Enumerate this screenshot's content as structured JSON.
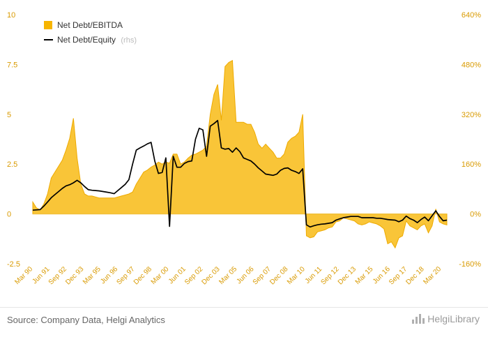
{
  "chart_data": {
    "type": "area",
    "x_labels": [
      "Mar 90",
      "Jun 91",
      "Sep 92",
      "Dec 93",
      "Mar 95",
      "Jun 96",
      "Sep 97",
      "Dec 98",
      "Mar 00",
      "Jun 01",
      "Sep 02",
      "Dec 03",
      "Mar 05",
      "Jun 06",
      "Sep 07",
      "Dec 08",
      "Mar 10",
      "Jun 11",
      "Sep 12",
      "Dec 13",
      "Mar 15",
      "Jun 16",
      "Sep 17",
      "Dec 18",
      "Mar 20"
    ],
    "y_left": {
      "ticks": [
        "10",
        "7.5",
        "5",
        "2.5",
        "0",
        "-2.5"
      ],
      "range": [
        -2.5,
        10
      ]
    },
    "y_right": {
      "ticks": [
        "640%",
        "480%",
        "320%",
        "160%",
        "0%",
        "-160%"
      ],
      "range": [
        -160,
        640
      ]
    },
    "series": [
      {
        "name": "Net Debt/EBITDA",
        "axis": "left",
        "style": "area",
        "color": "#f7b500",
        "points": [
          [
            0,
            0.6
          ],
          [
            1,
            0.3
          ],
          [
            2,
            0.2
          ],
          [
            3,
            0.5
          ],
          [
            4,
            1.0
          ],
          [
            5,
            1.8
          ],
          [
            6,
            2.1
          ],
          [
            7,
            2.4
          ],
          [
            8,
            2.7
          ],
          [
            9,
            3.2
          ],
          [
            10,
            3.8
          ],
          [
            11,
            4.8
          ],
          [
            12,
            2.8
          ],
          [
            13,
            1.5
          ],
          [
            14,
            1.0
          ],
          [
            15,
            0.9
          ],
          [
            16,
            0.9
          ],
          [
            17,
            0.85
          ],
          [
            18,
            0.8
          ],
          [
            19,
            0.8
          ],
          [
            20,
            0.8
          ],
          [
            21,
            0.8
          ],
          [
            22,
            0.8
          ],
          [
            23,
            0.85
          ],
          [
            24,
            0.9
          ],
          [
            25,
            0.95
          ],
          [
            26,
            1.0
          ],
          [
            27,
            1.1
          ],
          [
            28,
            1.5
          ],
          [
            29,
            1.8
          ],
          [
            30,
            2.1
          ],
          [
            31,
            2.2
          ],
          [
            32,
            2.35
          ],
          [
            33,
            2.45
          ],
          [
            34,
            2.6
          ],
          [
            35,
            2.5
          ],
          [
            36,
            2.6
          ],
          [
            37,
            2.55
          ],
          [
            38,
            3.0
          ],
          [
            39,
            3.0
          ],
          [
            40,
            2.5
          ],
          [
            41,
            2.6
          ],
          [
            42,
            2.8
          ],
          [
            43,
            2.95
          ],
          [
            44,
            3.0
          ],
          [
            45,
            3.1
          ],
          [
            46,
            3.2
          ],
          [
            47,
            3.4
          ],
          [
            48,
            5.0
          ],
          [
            49,
            6.0
          ],
          [
            50,
            6.5
          ],
          [
            51,
            4.7
          ],
          [
            52,
            7.4
          ],
          [
            53,
            7.6
          ],
          [
            54,
            7.7
          ],
          [
            55,
            4.6
          ],
          [
            56,
            4.6
          ],
          [
            57,
            4.6
          ],
          [
            58,
            4.5
          ],
          [
            59,
            4.5
          ],
          [
            60,
            4.1
          ],
          [
            61,
            3.5
          ],
          [
            62,
            3.3
          ],
          [
            63,
            3.5
          ],
          [
            64,
            3.3
          ],
          [
            65,
            3.1
          ],
          [
            66,
            2.8
          ],
          [
            67,
            2.8
          ],
          [
            68,
            3.0
          ],
          [
            69,
            3.6
          ],
          [
            70,
            3.8
          ],
          [
            71,
            3.9
          ],
          [
            72,
            4.1
          ],
          [
            73,
            5.0
          ],
          [
            74,
            -1.1
          ],
          [
            75,
            -1.2
          ],
          [
            76,
            -1.15
          ],
          [
            77,
            -0.9
          ],
          [
            78,
            -0.85
          ],
          [
            79,
            -0.8
          ],
          [
            80,
            -0.7
          ],
          [
            81,
            -0.65
          ],
          [
            82,
            -0.4
          ],
          [
            83,
            -0.35
          ],
          [
            84,
            -0.2
          ],
          [
            85,
            -0.25
          ],
          [
            86,
            -0.3
          ],
          [
            87,
            -0.35
          ],
          [
            88,
            -0.5
          ],
          [
            89,
            -0.55
          ],
          [
            90,
            -0.5
          ],
          [
            91,
            -0.4
          ],
          [
            92,
            -0.45
          ],
          [
            93,
            -0.5
          ],
          [
            94,
            -0.6
          ],
          [
            95,
            -0.75
          ],
          [
            96,
            -1.5
          ],
          [
            97,
            -1.4
          ],
          [
            98,
            -1.7
          ],
          [
            99,
            -1.2
          ],
          [
            100,
            -1.1
          ],
          [
            101,
            -0.35
          ],
          [
            102,
            -0.6
          ],
          [
            103,
            -0.7
          ],
          [
            104,
            -0.8
          ],
          [
            105,
            -0.6
          ],
          [
            106,
            -0.5
          ],
          [
            107,
            -0.95
          ],
          [
            108,
            -0.6
          ],
          [
            109,
            0.25
          ],
          [
            110,
            -0.4
          ],
          [
            111,
            -0.5
          ],
          [
            112,
            -0.55
          ]
        ]
      },
      {
        "name": "Net Debt/Equity",
        "name_suffix": "(rhs)",
        "axis": "right",
        "style": "line",
        "color": "#000000",
        "points": [
          [
            0,
            12
          ],
          [
            1,
            13
          ],
          [
            2,
            14
          ],
          [
            3,
            25
          ],
          [
            4,
            38
          ],
          [
            5,
            52
          ],
          [
            6,
            62
          ],
          [
            7,
            72
          ],
          [
            8,
            82
          ],
          [
            9,
            90
          ],
          [
            10,
            94
          ],
          [
            11,
            100
          ],
          [
            12,
            108
          ],
          [
            13,
            100
          ],
          [
            14,
            88
          ],
          [
            15,
            78
          ],
          [
            16,
            76
          ],
          [
            17,
            75
          ],
          [
            18,
            74
          ],
          [
            19,
            72
          ],
          [
            20,
            70
          ],
          [
            21,
            68
          ],
          [
            22,
            65
          ],
          [
            23,
            75
          ],
          [
            24,
            85
          ],
          [
            25,
            95
          ],
          [
            26,
            110
          ],
          [
            27,
            160
          ],
          [
            28,
            205
          ],
          [
            29,
            212
          ],
          [
            30,
            218
          ],
          [
            31,
            225
          ],
          [
            32,
            230
          ],
          [
            33,
            170
          ],
          [
            34,
            130
          ],
          [
            35,
            133
          ],
          [
            36,
            180
          ],
          [
            37,
            -40
          ],
          [
            38,
            185
          ],
          [
            39,
            150
          ],
          [
            40,
            150
          ],
          [
            41,
            162
          ],
          [
            42,
            168
          ],
          [
            43,
            170
          ],
          [
            44,
            240
          ],
          [
            45,
            275
          ],
          [
            46,
            270
          ],
          [
            47,
            185
          ],
          [
            48,
            282
          ],
          [
            49,
            290
          ],
          [
            50,
            300
          ],
          [
            51,
            212
          ],
          [
            52,
            208
          ],
          [
            53,
            210
          ],
          [
            54,
            198
          ],
          [
            55,
            212
          ],
          [
            56,
            200
          ],
          [
            57,
            180
          ],
          [
            58,
            175
          ],
          [
            59,
            170
          ],
          [
            60,
            160
          ],
          [
            61,
            148
          ],
          [
            62,
            138
          ],
          [
            63,
            128
          ],
          [
            64,
            126
          ],
          [
            65,
            124
          ],
          [
            66,
            128
          ],
          [
            67,
            140
          ],
          [
            68,
            146
          ],
          [
            69,
            148
          ],
          [
            70,
            140
          ],
          [
            71,
            136
          ],
          [
            72,
            130
          ],
          [
            73,
            145
          ],
          [
            74,
            -35
          ],
          [
            75,
            -42
          ],
          [
            76,
            -38
          ],
          [
            77,
            -35
          ],
          [
            78,
            -33
          ],
          [
            79,
            -32
          ],
          [
            80,
            -30
          ],
          [
            81,
            -28
          ],
          [
            82,
            -20
          ],
          [
            83,
            -16
          ],
          [
            84,
            -12
          ],
          [
            85,
            -10
          ],
          [
            86,
            -8
          ],
          [
            87,
            -8
          ],
          [
            88,
            -8
          ],
          [
            89,
            -12
          ],
          [
            90,
            -12
          ],
          [
            91,
            -12
          ],
          [
            92,
            -12
          ],
          [
            93,
            -14
          ],
          [
            94,
            -14
          ],
          [
            95,
            -16
          ],
          [
            96,
            -18
          ],
          [
            97,
            -19
          ],
          [
            98,
            -20
          ],
          [
            99,
            -25
          ],
          [
            100,
            -20
          ],
          [
            101,
            -7
          ],
          [
            102,
            -15
          ],
          [
            103,
            -20
          ],
          [
            104,
            -28
          ],
          [
            105,
            -18
          ],
          [
            106,
            -10
          ],
          [
            107,
            -22
          ],
          [
            108,
            -6
          ],
          [
            109,
            10
          ],
          [
            110,
            -8
          ],
          [
            111,
            -22
          ],
          [
            112,
            -20
          ]
        ]
      }
    ],
    "legend": "top-left",
    "grid": false
  },
  "footer": {
    "source": "Source: Company Data, Helgi Analytics",
    "logo_text": "HelgiLibrary"
  }
}
